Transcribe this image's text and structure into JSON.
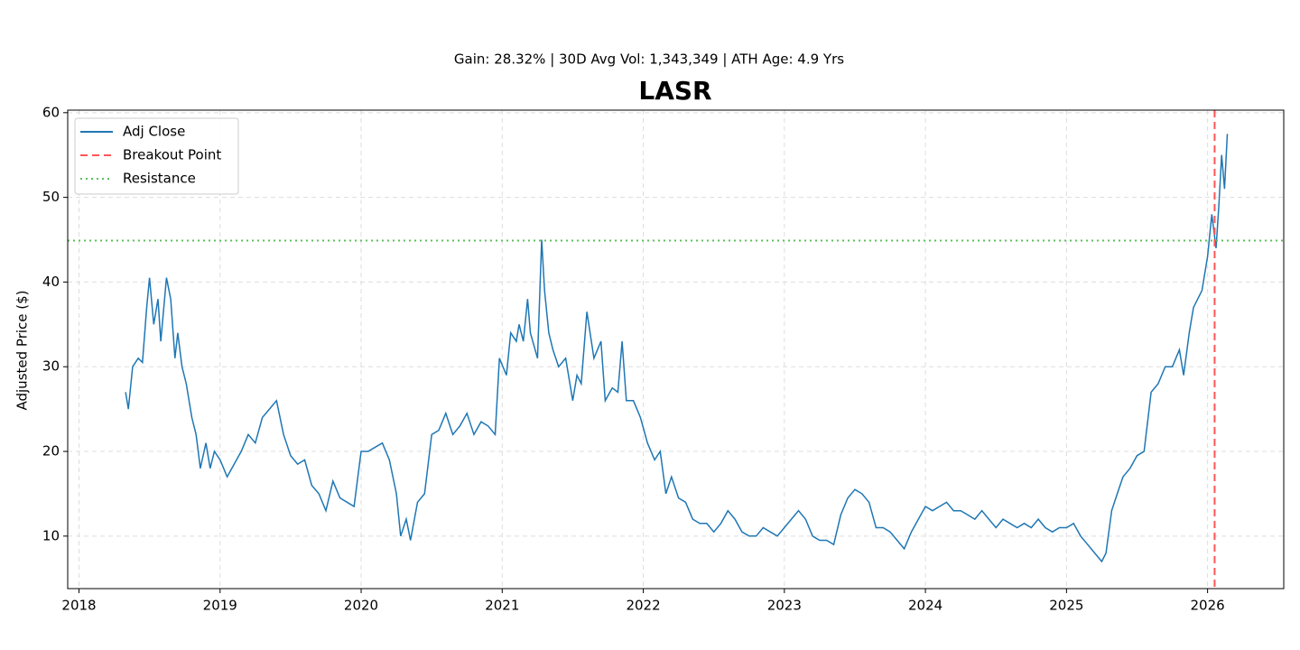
{
  "chart_data": {
    "type": "line",
    "title": "LASR",
    "subtitle": "Gain: 28.32% | 30D Avg Vol: 1,343,349 | ATH Age: 4.9 Yrs",
    "y_label": "Adjusted Price ($)",
    "x": [
      2018.33,
      2018.35,
      2018.38,
      2018.42,
      2018.45,
      2018.48,
      2018.5,
      2018.53,
      2018.56,
      2018.58,
      2018.62,
      2018.65,
      2018.68,
      2018.7,
      2018.73,
      2018.76,
      2018.8,
      2018.83,
      2018.86,
      2018.9,
      2018.93,
      2018.96,
      2019.0,
      2019.05,
      2019.1,
      2019.15,
      2019.2,
      2019.25,
      2019.3,
      2019.35,
      2019.4,
      2019.45,
      2019.5,
      2019.55,
      2019.6,
      2019.65,
      2019.7,
      2019.75,
      2019.8,
      2019.85,
      2019.9,
      2019.95,
      2020.0,
      2020.05,
      2020.1,
      2020.15,
      2020.2,
      2020.25,
      2020.28,
      2020.32,
      2020.35,
      2020.4,
      2020.45,
      2020.5,
      2020.55,
      2020.6,
      2020.65,
      2020.7,
      2020.75,
      2020.8,
      2020.85,
      2020.9,
      2020.95,
      2020.98,
      2021.03,
      2021.06,
      2021.1,
      2021.12,
      2021.15,
      2021.18,
      2021.2,
      2021.25,
      2021.28,
      2021.3,
      2021.33,
      2021.36,
      2021.4,
      2021.45,
      2021.5,
      2021.53,
      2021.56,
      2021.6,
      2021.65,
      2021.7,
      2021.73,
      2021.78,
      2021.82,
      2021.85,
      2021.88,
      2021.93,
      2021.98,
      2022.03,
      2022.08,
      2022.12,
      2022.16,
      2022.2,
      2022.25,
      2022.3,
      2022.35,
      2022.4,
      2022.45,
      2022.5,
      2022.55,
      2022.6,
      2022.65,
      2022.7,
      2022.75,
      2022.8,
      2022.85,
      2022.9,
      2022.95,
      2023.0,
      2023.05,
      2023.1,
      2023.15,
      2023.2,
      2023.25,
      2023.3,
      2023.35,
      2023.4,
      2023.45,
      2023.5,
      2023.55,
      2023.6,
      2023.65,
      2023.7,
      2023.75,
      2023.8,
      2023.85,
      2023.9,
      2023.95,
      2024.0,
      2024.05,
      2024.1,
      2024.15,
      2024.2,
      2024.25,
      2024.3,
      2024.35,
      2024.4,
      2024.45,
      2024.5,
      2024.55,
      2024.6,
      2024.65,
      2024.7,
      2024.75,
      2024.8,
      2024.85,
      2024.9,
      2024.95,
      2025.0,
      2025.05,
      2025.1,
      2025.15,
      2025.2,
      2025.25,
      2025.28,
      2025.32,
      2025.36,
      2025.4,
      2025.45,
      2025.5,
      2025.55,
      2025.6,
      2025.65,
      2025.7,
      2025.75,
      2025.8,
      2025.83,
      2025.87,
      2025.9,
      2025.93,
      2025.96,
      2026.0,
      2026.03,
      2026.06,
      2026.08,
      2026.1,
      2026.12,
      2026.14
    ],
    "series": [
      {
        "name": "Adj Close",
        "color": "#1f77b4",
        "values": [
          27,
          25,
          30,
          31,
          30.5,
          37,
          40.5,
          35,
          38,
          33,
          40.5,
          38,
          31,
          34,
          30,
          28,
          24,
          22,
          18,
          21,
          18,
          20,
          19,
          17,
          18.5,
          20,
          22,
          21,
          24,
          25,
          26,
          22,
          19.5,
          18.5,
          19,
          16,
          15,
          13,
          16.5,
          14.5,
          14,
          13.5,
          20,
          20,
          20.5,
          21,
          19,
          15,
          10,
          12,
          9.5,
          14,
          15,
          22,
          22.5,
          24.5,
          22,
          23,
          24.5,
          22,
          23.5,
          23,
          22,
          31,
          29,
          34,
          33,
          35,
          33,
          38,
          34,
          31,
          45,
          39,
          34,
          32,
          30,
          31,
          26,
          29,
          28,
          36.5,
          31,
          33,
          26,
          27.5,
          27,
          33,
          26,
          26,
          24,
          21,
          19,
          20,
          15,
          17,
          14.5,
          14,
          12,
          11.5,
          11.5,
          10.5,
          11.5,
          13,
          12,
          10.5,
          10,
          10,
          11,
          10.5,
          10,
          11,
          12,
          13,
          12,
          10,
          9.5,
          9.5,
          9,
          12.5,
          14.5,
          15.5,
          15,
          14,
          11,
          11,
          10.5,
          9.5,
          8.5,
          10.5,
          12,
          13.5,
          13,
          13.5,
          14,
          13,
          13,
          12.5,
          12,
          13,
          12,
          11,
          12,
          11.5,
          11,
          11.5,
          11,
          12,
          11,
          10.5,
          11,
          11,
          11.5,
          10,
          9,
          8,
          7,
          8,
          13,
          15,
          17,
          18,
          19.5,
          20,
          27,
          28,
          30,
          30,
          32,
          29,
          34,
          37,
          38,
          39,
          43,
          48,
          44,
          49,
          55,
          51,
          57.5
        ]
      }
    ],
    "reference_lines": [
      {
        "name": "Breakout Point",
        "axis": "x",
        "value": 2026.05,
        "color": "#ff5555",
        "style": "dashed"
      },
      {
        "name": "Resistance",
        "axis": "y",
        "value": 44.9,
        "color": "#5cbf5c",
        "style": "dotted"
      }
    ],
    "xlim": [
      2017.92,
      2026.54
    ],
    "xticks": [
      2018,
      2019,
      2020,
      2021,
      2022,
      2023,
      2024,
      2025,
      2026
    ],
    "ylim": [
      3.8,
      60.3
    ],
    "yticks": [
      10,
      20,
      30,
      40,
      50,
      60
    ],
    "grid": true,
    "legend": "upper-left"
  }
}
